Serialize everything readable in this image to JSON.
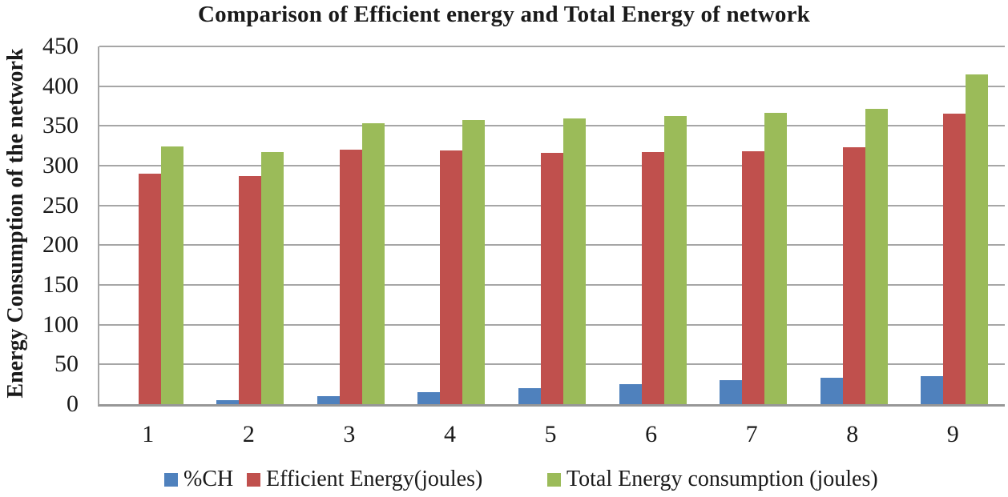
{
  "chart_data": {
    "type": "bar",
    "title": "Comparison of Efficient energy and Total Energy of network",
    "ylabel": "Energy Consumption of the network",
    "xlabel": "",
    "categories": [
      "1",
      "2",
      "3",
      "4",
      "5",
      "6",
      "7",
      "8",
      "9"
    ],
    "series": [
      {
        "name": "%CH",
        "color": "#4F81BD",
        "values": [
          0,
          5,
          10,
          15,
          20,
          25,
          30,
          33,
          35
        ]
      },
      {
        "name": "Efficient Energy(joules)",
        "color": "#C0504D",
        "values": [
          290,
          287,
          320,
          319,
          316,
          317,
          318,
          323,
          365
        ]
      },
      {
        "name": "Total Energy consumption (joules)",
        "color": "#9BBB59",
        "values": [
          324,
          317,
          353,
          357,
          359,
          362,
          366,
          371,
          415
        ]
      }
    ],
    "ylim": [
      0,
      450
    ],
    "ytick_step": 50,
    "yticks": [
      450,
      400,
      350,
      300,
      250,
      200,
      150,
      100,
      50,
      0
    ],
    "grid": true,
    "legend_position": "bottom",
    "gridline_color": "#A6A6A6",
    "axis_color": "#979797",
    "background": "#FFFFFF"
  }
}
